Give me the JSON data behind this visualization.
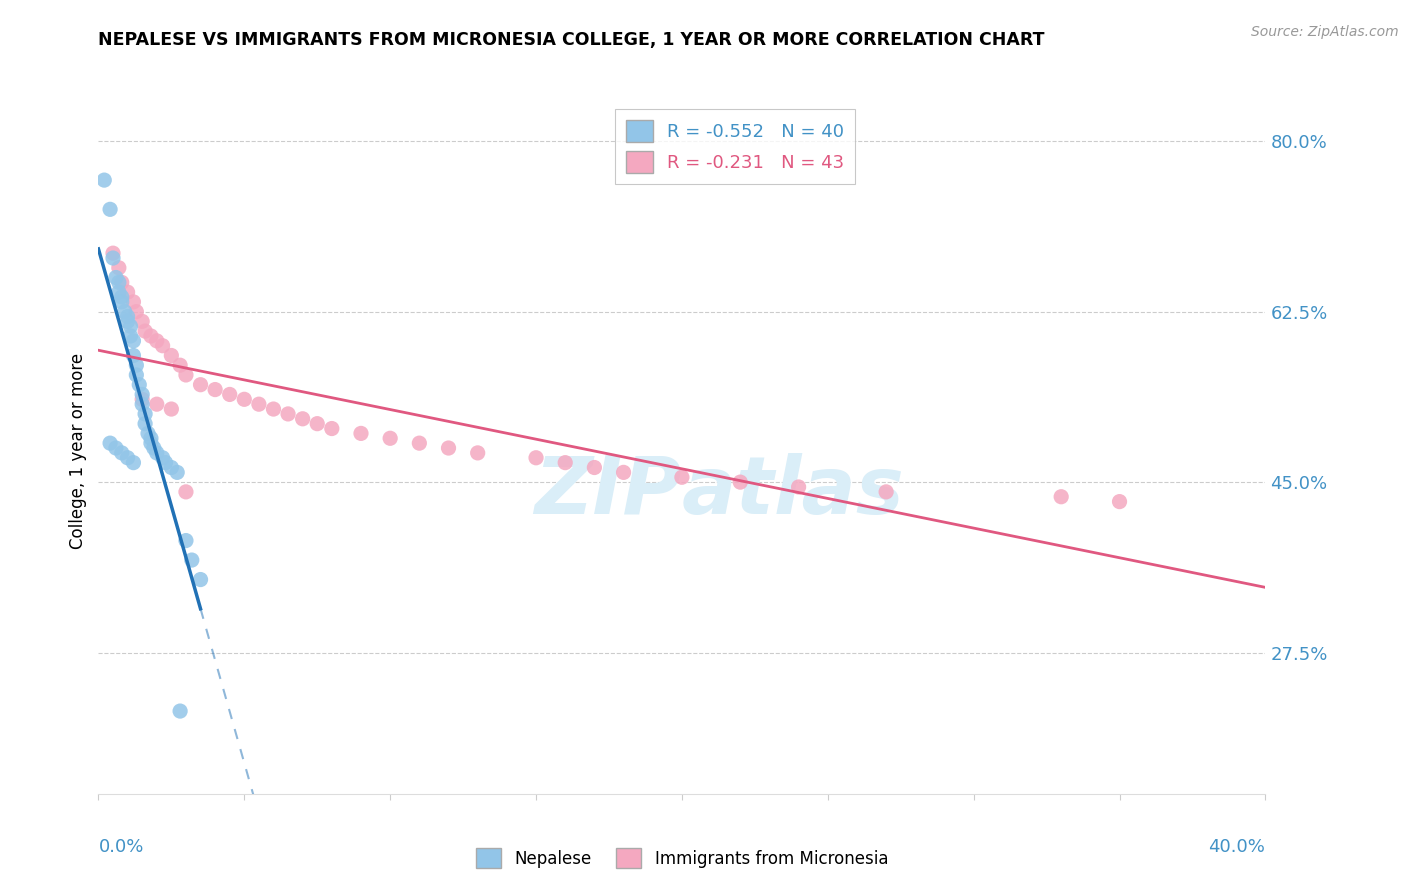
{
  "title": "NEPALESE VS IMMIGRANTS FROM MICRONESIA COLLEGE, 1 YEAR OR MORE CORRELATION CHART",
  "source": "Source: ZipAtlas.com",
  "ylabel": "College, 1 year or more",
  "right_yticks": [
    0.8,
    0.625,
    0.45,
    0.275
  ],
  "right_ytick_labels": [
    "80.0%",
    "62.5%",
    "45.0%",
    "27.5%"
  ],
  "xmin": 0.0,
  "xmax": 0.4,
  "ymin": 0.13,
  "ymax": 0.835,
  "legend_r1": "R = -0.552",
  "legend_n1": "N = 40",
  "legend_r2": "R = -0.231",
  "legend_n2": "N = 43",
  "nepalese_x": [
    0.002,
    0.004,
    0.005,
    0.006,
    0.007,
    0.007,
    0.008,
    0.008,
    0.009,
    0.01,
    0.01,
    0.011,
    0.011,
    0.012,
    0.012,
    0.013,
    0.013,
    0.014,
    0.015,
    0.015,
    0.016,
    0.016,
    0.017,
    0.018,
    0.018,
    0.019,
    0.02,
    0.022,
    0.023,
    0.025,
    0.027,
    0.03,
    0.032,
    0.035,
    0.004,
    0.006,
    0.008,
    0.01,
    0.012,
    0.028
  ],
  "nepalese_y": [
    0.76,
    0.73,
    0.68,
    0.66,
    0.655,
    0.645,
    0.64,
    0.635,
    0.625,
    0.62,
    0.615,
    0.61,
    0.6,
    0.595,
    0.58,
    0.57,
    0.56,
    0.55,
    0.54,
    0.53,
    0.52,
    0.51,
    0.5,
    0.495,
    0.49,
    0.485,
    0.48,
    0.475,
    0.47,
    0.465,
    0.46,
    0.39,
    0.37,
    0.35,
    0.49,
    0.485,
    0.48,
    0.475,
    0.47,
    0.215
  ],
  "micronesia_x": [
    0.005,
    0.007,
    0.008,
    0.01,
    0.012,
    0.013,
    0.015,
    0.016,
    0.018,
    0.02,
    0.022,
    0.025,
    0.028,
    0.03,
    0.035,
    0.04,
    0.045,
    0.05,
    0.055,
    0.06,
    0.065,
    0.07,
    0.075,
    0.08,
    0.09,
    0.1,
    0.11,
    0.12,
    0.13,
    0.15,
    0.16,
    0.17,
    0.18,
    0.2,
    0.22,
    0.24,
    0.27,
    0.33,
    0.35,
    0.015,
    0.02,
    0.025,
    0.03
  ],
  "micronesia_y": [
    0.685,
    0.67,
    0.655,
    0.645,
    0.635,
    0.625,
    0.615,
    0.605,
    0.6,
    0.595,
    0.59,
    0.58,
    0.57,
    0.56,
    0.55,
    0.545,
    0.54,
    0.535,
    0.53,
    0.525,
    0.52,
    0.515,
    0.51,
    0.505,
    0.5,
    0.495,
    0.49,
    0.485,
    0.48,
    0.475,
    0.47,
    0.465,
    0.46,
    0.455,
    0.45,
    0.445,
    0.44,
    0.435,
    0.43,
    0.535,
    0.53,
    0.525,
    0.44
  ],
  "color_nepalese": "#92c5e8",
  "color_micronesia": "#f4a8c0",
  "color_regline_nepalese": "#2171b5",
  "color_regline_micronesia": "#e05880",
  "color_axis_labels": "#4292c6",
  "color_grid": "#cccccc",
  "watermark_color": "#daeef8",
  "background_color": "#ffffff"
}
